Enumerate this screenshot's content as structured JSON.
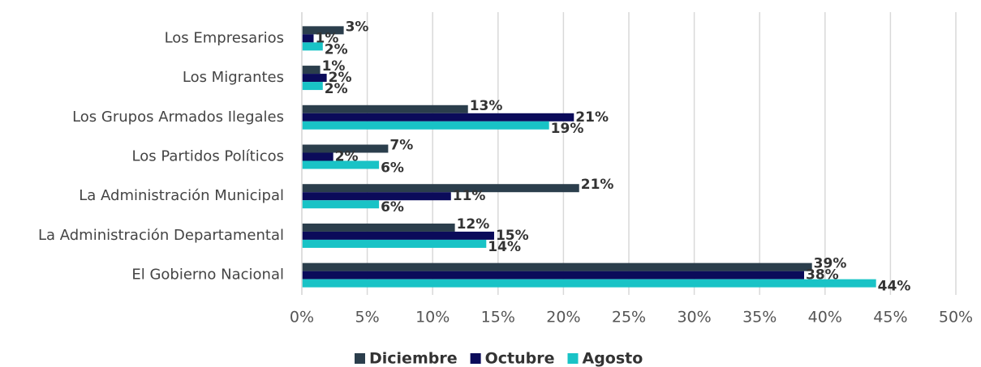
{
  "chart_data": {
    "type": "hbar",
    "categories": [
      "Los Empresarios",
      "Los Migrantes",
      "Los Grupos Armados Ilegales",
      "Los Partidos Políticos",
      "La Administración Municipal",
      "La Administración Departamental",
      "El Gobierno Nacional"
    ],
    "series": [
      {
        "name": "Diciembre",
        "color": "#2b3e4c",
        "values": [
          3.2,
          1.4,
          12.7,
          6.6,
          21.2,
          11.7,
          39.0
        ],
        "value_labels": [
          "3%",
          "1%",
          "13%",
          "7%",
          "21%",
          "12%",
          "39%"
        ]
      },
      {
        "name": "Octubre",
        "color": "#0b0b5a",
        "values": [
          0.9,
          1.9,
          20.8,
          2.4,
          11.4,
          14.7,
          38.4
        ],
        "value_labels": [
          "1%",
          "2%",
          "21%",
          "2%",
          "11%",
          "15%",
          "38%"
        ]
      },
      {
        "name": "Agosto",
        "color": "#19c3c6",
        "values": [
          1.6,
          1.6,
          18.9,
          5.9,
          5.9,
          14.1,
          43.9
        ],
        "value_labels": [
          "2%",
          "2%",
          "19%",
          "6%",
          "6%",
          "14%",
          "44%"
        ]
      }
    ],
    "xlim": [
      0,
      50
    ],
    "xticks": [
      {
        "value": 0,
        "label": "0%"
      },
      {
        "value": 5,
        "label": "5%"
      },
      {
        "value": 10,
        "label": "10%"
      },
      {
        "value": 15,
        "label": "15%"
      },
      {
        "value": 20,
        "label": "20%"
      },
      {
        "value": 25,
        "label": "25%"
      },
      {
        "value": 30,
        "label": "30%"
      },
      {
        "value": 35,
        "label": "35%"
      },
      {
        "value": 40,
        "label": "40%"
      },
      {
        "value": 45,
        "label": "45%"
      },
      {
        "value": 50,
        "label": "50%"
      }
    ],
    "grid": true,
    "legend": "bottom"
  }
}
